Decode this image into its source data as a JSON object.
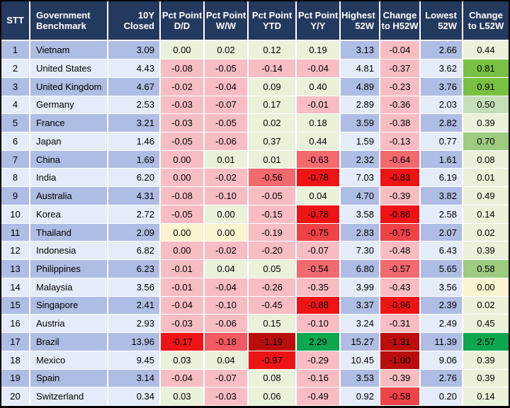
{
  "colors": {
    "header_bg": "#24395E",
    "header_text": "#FFFFFF",
    "row_odd": "#AFBCE3",
    "row_even": "#E3ECF8",
    "grid": "#FFFFFF",
    "outer_border": "#000000",
    "lg": "#EAF1DB",
    "yl": "#FCF3D0",
    "lp": "#F7BDC3",
    "pr": "#F15A60",
    "mr": "#F2696E",
    "rr": "#EF4347",
    "br": "#EE1416",
    "dr": "#BB0D0D",
    "ml": "#C6DEB8",
    "mg": "#9DCB80",
    "ag": "#79C143",
    "kg": "#0DA750"
  },
  "table": {
    "columns": [
      {
        "key": "stt",
        "label": "STT"
      },
      {
        "key": "benchmark",
        "label": "Government Benchmark"
      },
      {
        "key": "closed",
        "label": "10Y Closed"
      },
      {
        "key": "dd",
        "label": "Pct Point D/D"
      },
      {
        "key": "ww",
        "label": "Pct Point W/W"
      },
      {
        "key": "ytd",
        "label": "Pct Point YTD"
      },
      {
        "key": "yy",
        "label": "Pct Point Y/Y"
      },
      {
        "key": "high",
        "label": "Highest 52W"
      },
      {
        "key": "chg_h",
        "label": "Change to H52W"
      },
      {
        "key": "low",
        "label": "Lowest 52W"
      },
      {
        "key": "chg_l",
        "label": "Change to L52W"
      }
    ],
    "rows": [
      {
        "stt": "1",
        "benchmark": "Vietnam",
        "closed": "3.09",
        "dd": {
          "v": "0.00",
          "c": "lg"
        },
        "ww": {
          "v": "0.02",
          "c": "lg"
        },
        "ytd": {
          "v": "0.12",
          "c": "lg"
        },
        "yy": {
          "v": "0.19",
          "c": "lg"
        },
        "high": "3.13",
        "chg_h": {
          "v": "-0.04",
          "c": "lp"
        },
        "low": "2.66",
        "chg_l": {
          "v": "0.44",
          "c": "lg"
        }
      },
      {
        "stt": "2",
        "benchmark": "United States",
        "closed": "4.43",
        "dd": {
          "v": "-0.08",
          "c": "lp"
        },
        "ww": {
          "v": "-0.05",
          "c": "lp"
        },
        "ytd": {
          "v": "-0.14",
          "c": "lp"
        },
        "yy": {
          "v": "-0.04",
          "c": "lp"
        },
        "high": "4.81",
        "chg_h": {
          "v": "-0.37",
          "c": "lp"
        },
        "low": "3.62",
        "chg_l": {
          "v": "0.81",
          "c": "ag"
        }
      },
      {
        "stt": "3",
        "benchmark": "United Kingdom",
        "closed": "4.67",
        "dd": {
          "v": "-0.02",
          "c": "lp"
        },
        "ww": {
          "v": "-0.04",
          "c": "lp"
        },
        "ytd": {
          "v": "0.09",
          "c": "lg"
        },
        "yy": {
          "v": "0.40",
          "c": "lg"
        },
        "high": "4.89",
        "chg_h": {
          "v": "-0.23",
          "c": "lp"
        },
        "low": "3.76",
        "chg_l": {
          "v": "0.91",
          "c": "ag"
        }
      },
      {
        "stt": "4",
        "benchmark": "Germany",
        "closed": "2.53",
        "dd": {
          "v": "-0.03",
          "c": "lp"
        },
        "ww": {
          "v": "-0.07",
          "c": "lp"
        },
        "ytd": {
          "v": "0.17",
          "c": "lg"
        },
        "yy": {
          "v": "-0.01",
          "c": "lp"
        },
        "high": "2.89",
        "chg_h": {
          "v": "-0.36",
          "c": "lp"
        },
        "low": "2.03",
        "chg_l": {
          "v": "0.50",
          "c": "ml"
        }
      },
      {
        "stt": "5",
        "benchmark": "France",
        "closed": "3.21",
        "dd": {
          "v": "-0.03",
          "c": "lp"
        },
        "ww": {
          "v": "-0.05",
          "c": "lp"
        },
        "ytd": {
          "v": "0.02",
          "c": "lg"
        },
        "yy": {
          "v": "0.18",
          "c": "lg"
        },
        "high": "3.59",
        "chg_h": {
          "v": "-0.38",
          "c": "lp"
        },
        "low": "2.82",
        "chg_l": {
          "v": "0.39",
          "c": "lg"
        }
      },
      {
        "stt": "6",
        "benchmark": "Japan",
        "closed": "1.46",
        "dd": {
          "v": "-0.05",
          "c": "lp"
        },
        "ww": {
          "v": "-0.06",
          "c": "lp"
        },
        "ytd": {
          "v": "0.37",
          "c": "lg"
        },
        "yy": {
          "v": "0.44",
          "c": "lg"
        },
        "high": "1.59",
        "chg_h": {
          "v": "-0.13",
          "c": "lp"
        },
        "low": "0.77",
        "chg_l": {
          "v": "0.70",
          "c": "mg"
        }
      },
      {
        "stt": "7",
        "benchmark": "China",
        "closed": "1.69",
        "dd": {
          "v": "0.00",
          "c": "lp"
        },
        "ww": {
          "v": "0.01",
          "c": "lg"
        },
        "ytd": {
          "v": "0.01",
          "c": "lg"
        },
        "yy": {
          "v": "-0.63",
          "c": "mr"
        },
        "high": "2.32",
        "chg_h": {
          "v": "-0.64",
          "c": "mr"
        },
        "low": "1.61",
        "chg_l": {
          "v": "0.08",
          "c": "lg"
        }
      },
      {
        "stt": "8",
        "benchmark": "India",
        "closed": "6.20",
        "dd": {
          "v": "0.00",
          "c": "lp"
        },
        "ww": {
          "v": "-0.02",
          "c": "lp"
        },
        "ytd": {
          "v": "-0.56",
          "c": "mr"
        },
        "yy": {
          "v": "-0.78",
          "c": "br"
        },
        "high": "7.03",
        "chg_h": {
          "v": "-0.83",
          "c": "br"
        },
        "low": "6.19",
        "chg_l": {
          "v": "0.01",
          "c": "lg"
        }
      },
      {
        "stt": "9",
        "benchmark": "Australia",
        "closed": "4.31",
        "dd": {
          "v": "-0.08",
          "c": "lp"
        },
        "ww": {
          "v": "-0.10",
          "c": "lp"
        },
        "ytd": {
          "v": "-0.05",
          "c": "lp"
        },
        "yy": {
          "v": "0.04",
          "c": "lg"
        },
        "high": "4.70",
        "chg_h": {
          "v": "-0.39",
          "c": "lp"
        },
        "low": "3.82",
        "chg_l": {
          "v": "0.49",
          "c": "lg"
        }
      },
      {
        "stt": "10",
        "benchmark": "Korea",
        "closed": "2.72",
        "dd": {
          "v": "-0.05",
          "c": "lp"
        },
        "ww": {
          "v": "0.00",
          "c": "lg"
        },
        "ytd": {
          "v": "-0.15",
          "c": "lp"
        },
        "yy": {
          "v": "-0.78",
          "c": "br"
        },
        "high": "3.58",
        "chg_h": {
          "v": "-0.86",
          "c": "br"
        },
        "low": "2.58",
        "chg_l": {
          "v": "0.14",
          "c": "lg"
        }
      },
      {
        "stt": "11",
        "benchmark": "Thailand",
        "closed": "2.09",
        "dd": {
          "v": "0.00",
          "c": "yl"
        },
        "ww": {
          "v": "0.00",
          "c": "yl"
        },
        "ytd": {
          "v": "-0.19",
          "c": "lp"
        },
        "yy": {
          "v": "-0.75",
          "c": "rr"
        },
        "high": "2.83",
        "chg_h": {
          "v": "-0.75",
          "c": "rr"
        },
        "low": "2.07",
        "chg_l": {
          "v": "0.02",
          "c": "lg"
        }
      },
      {
        "stt": "12",
        "benchmark": "Indonesia",
        "closed": "6.82",
        "dd": {
          "v": "0.00",
          "c": "lp"
        },
        "ww": {
          "v": "-0.02",
          "c": "lp"
        },
        "ytd": {
          "v": "-0.20",
          "c": "lp"
        },
        "yy": {
          "v": "-0.07",
          "c": "lp"
        },
        "high": "7.30",
        "chg_h": {
          "v": "-0.48",
          "c": "lp"
        },
        "low": "6.43",
        "chg_l": {
          "v": "0.39",
          "c": "lg"
        }
      },
      {
        "stt": "13",
        "benchmark": "Philippines",
        "closed": "6.23",
        "dd": {
          "v": "-0.01",
          "c": "lp"
        },
        "ww": {
          "v": "0.04",
          "c": "lg"
        },
        "ytd": {
          "v": "0.05",
          "c": "lg"
        },
        "yy": {
          "v": "-0.54",
          "c": "mr"
        },
        "high": "6.80",
        "chg_h": {
          "v": "-0.57",
          "c": "mr"
        },
        "low": "5.65",
        "chg_l": {
          "v": "0.58",
          "c": "mg"
        }
      },
      {
        "stt": "14",
        "benchmark": "Malaysia",
        "closed": "3.56",
        "dd": {
          "v": "-0.01",
          "c": "lp"
        },
        "ww": {
          "v": "-0.04",
          "c": "lp"
        },
        "ytd": {
          "v": "-0.26",
          "c": "lp"
        },
        "yy": {
          "v": "-0.35",
          "c": "lp"
        },
        "high": "3.99",
        "chg_h": {
          "v": "-0.43",
          "c": "lp"
        },
        "low": "3.56",
        "chg_l": {
          "v": "0.00",
          "c": "yl"
        }
      },
      {
        "stt": "15",
        "benchmark": "Singapore",
        "closed": "2.41",
        "dd": {
          "v": "-0.04",
          "c": "lp"
        },
        "ww": {
          "v": "-0.10",
          "c": "lp"
        },
        "ytd": {
          "v": "-0.45",
          "c": "lp"
        },
        "yy": {
          "v": "-0.88",
          "c": "br"
        },
        "high": "3.37",
        "chg_h": {
          "v": "-0.96",
          "c": "br"
        },
        "low": "2.39",
        "chg_l": {
          "v": "0.02",
          "c": "lg"
        }
      },
      {
        "stt": "16",
        "benchmark": "Austria",
        "closed": "2.93",
        "dd": {
          "v": "-0.03",
          "c": "lp"
        },
        "ww": {
          "v": "-0.06",
          "c": "lp"
        },
        "ytd": {
          "v": "0.15",
          "c": "lg"
        },
        "yy": {
          "v": "-0.10",
          "c": "lp"
        },
        "high": "3.24",
        "chg_h": {
          "v": "-0.31",
          "c": "lp"
        },
        "low": "2.49",
        "chg_l": {
          "v": "0.45",
          "c": "lg"
        }
      },
      {
        "stt": "17",
        "benchmark": "Brazil",
        "closed": "13.96",
        "dd": {
          "v": "-0.17",
          "c": "br"
        },
        "ww": {
          "v": "-0.18",
          "c": "pr"
        },
        "ytd": {
          "v": "-1.19",
          "c": "dr"
        },
        "yy": {
          "v": "2.29",
          "c": "kg"
        },
        "high": "15.27",
        "chg_h": {
          "v": "-1.31",
          "c": "dr"
        },
        "low": "11.39",
        "chg_l": {
          "v": "2.57",
          "c": "kg"
        }
      },
      {
        "stt": "18",
        "benchmark": "Mexico",
        "closed": "9.45",
        "dd": {
          "v": "0.03",
          "c": "lg"
        },
        "ww": {
          "v": "0.04",
          "c": "lg"
        },
        "ytd": {
          "v": "-0.97",
          "c": "br"
        },
        "yy": {
          "v": "-0.29",
          "c": "lp"
        },
        "high": "10.45",
        "chg_h": {
          "v": "-1.00",
          "c": "dr"
        },
        "low": "9.06",
        "chg_l": {
          "v": "0.39",
          "c": "lg"
        }
      },
      {
        "stt": "19",
        "benchmark": "Spain",
        "closed": "3.14",
        "dd": {
          "v": "-0.04",
          "c": "lp"
        },
        "ww": {
          "v": "-0.07",
          "c": "lp"
        },
        "ytd": {
          "v": "0.08",
          "c": "lg"
        },
        "yy": {
          "v": "-0.16",
          "c": "lp"
        },
        "high": "3.53",
        "chg_h": {
          "v": "-0.39",
          "c": "lp"
        },
        "low": "2.76",
        "chg_l": {
          "v": "0.39",
          "c": "lg"
        }
      },
      {
        "stt": "20",
        "benchmark": "Switzerland",
        "closed": "0.34",
        "dd": {
          "v": "0.03",
          "c": "lg"
        },
        "ww": {
          "v": "-0.03",
          "c": "lp"
        },
        "ytd": {
          "v": "0.06",
          "c": "lg"
        },
        "yy": {
          "v": "-0.49",
          "c": "lp"
        },
        "high": "0.92",
        "chg_h": {
          "v": "-0.58",
          "c": "rr"
        },
        "low": "0.20",
        "chg_l": {
          "v": "0.14",
          "c": "lg"
        }
      }
    ]
  }
}
